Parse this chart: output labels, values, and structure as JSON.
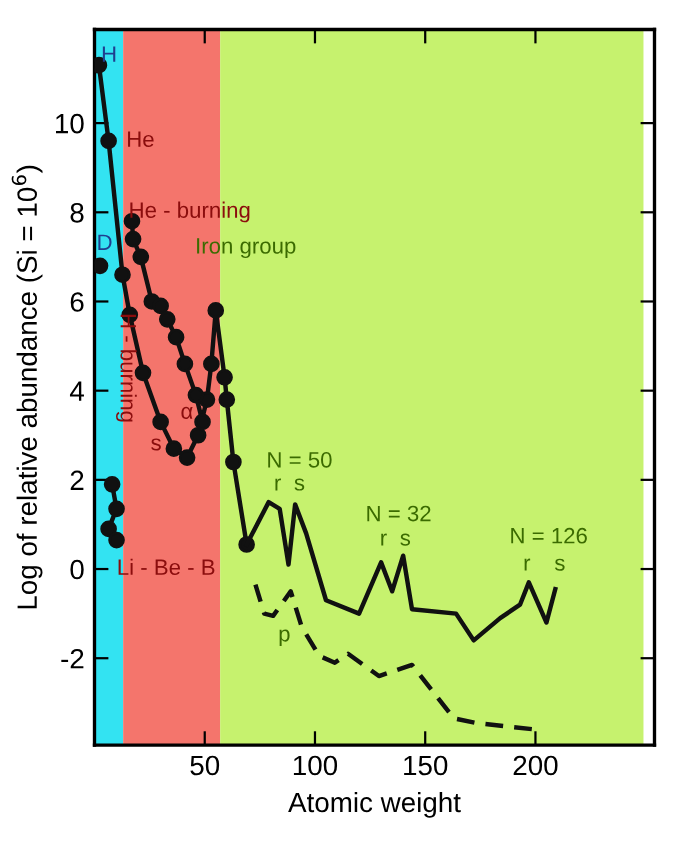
{
  "chart_data": {
    "type": "line",
    "xlabel": "Atomic weight",
    "ylabel": "Log of relative abundance (Si = 10$^{6}$)",
    "xlim": [
      0,
      254
    ],
    "ylim": [
      -3.95,
      12.1
    ],
    "xticks": [
      50,
      100,
      150,
      200
    ],
    "yticks": [
      -2,
      0,
      2,
      4,
      6,
      8,
      10
    ],
    "grid": false,
    "bands": [
      {
        "axis": "x",
        "from": 0,
        "to": 13,
        "color": "#33e3f2"
      },
      {
        "axis": "x",
        "from": 13,
        "to": 57,
        "color": "#f4756c"
      },
      {
        "axis": "x",
        "from": 57,
        "to": 249,
        "color": "#c6f26e"
      }
    ],
    "series": [
      {
        "color": "#111111",
        "marker": "circle",
        "line_style": "solid",
        "x": [
          2,
          6.4,
          12.7,
          16,
          22,
          30,
          36,
          42,
          47,
          51,
          53,
          55,
          59,
          60,
          63,
          69
        ],
        "values": [
          11.3,
          9.6,
          6.6,
          5.7,
          4.4,
          3.3,
          2.7,
          2.5,
          3.0,
          3.8,
          4.6,
          5.8,
          4.3,
          3.8,
          2.4,
          0.55
        ]
      },
      {
        "color": "#111111",
        "marker": "circle",
        "line_style": "solid",
        "x": [
          17,
          17.5,
          21,
          26,
          30,
          33,
          37,
          41,
          46,
          49
        ],
        "values": [
          7.8,
          7.4,
          7.0,
          6.0,
          5.9,
          5.6,
          5.2,
          4.6,
          3.9,
          3.3
        ]
      },
      {
        "color": "#111111",
        "marker": "circle",
        "line_style": "solid",
        "x": [
          8,
          10,
          6.4,
          10
        ],
        "values": [
          1.9,
          1.35,
          0.9,
          0.65
        ]
      },
      {
        "color": "#111111",
        "marker": "circle",
        "line_style": "solid",
        "x": [
          2.5
        ],
        "values": [
          6.8
        ]
      },
      {
        "color": "#111111",
        "marker": "none",
        "line_style": "solid",
        "x": [
          69,
          79,
          84,
          88,
          91,
          96,
          105,
          120,
          130,
          135,
          140,
          144,
          164,
          172,
          184,
          193,
          197,
          205,
          209
        ],
        "values": [
          0.55,
          1.5,
          1.35,
          0.1,
          1.45,
          0.8,
          -0.7,
          -1.0,
          0.15,
          -0.5,
          0.3,
          -0.9,
          -1.0,
          -1.6,
          -1.1,
          -0.8,
          -0.3,
          -1.2,
          -0.45
        ]
      },
      {
        "color": "#111111",
        "marker": "none",
        "line_style": "dashed",
        "x": [
          73,
          77,
          81,
          89,
          94,
          102,
          109,
          115,
          129,
          144,
          163,
          173,
          200
        ],
        "values": [
          -0.35,
          -1.0,
          -1.05,
          -0.5,
          -1.3,
          -1.95,
          -2.1,
          -1.9,
          -2.4,
          -2.15,
          -3.35,
          -3.45,
          -3.6
        ]
      }
    ],
    "annotations": [
      "H",
      "He",
      "D",
      "He - burning",
      "H - burning",
      "Iron group",
      "α",
      "s",
      "Li - Be - B",
      "N = 50",
      "r",
      "s",
      "N = 32",
      "r",
      "s",
      "N = 126",
      "r",
      "s",
      "p"
    ]
  }
}
